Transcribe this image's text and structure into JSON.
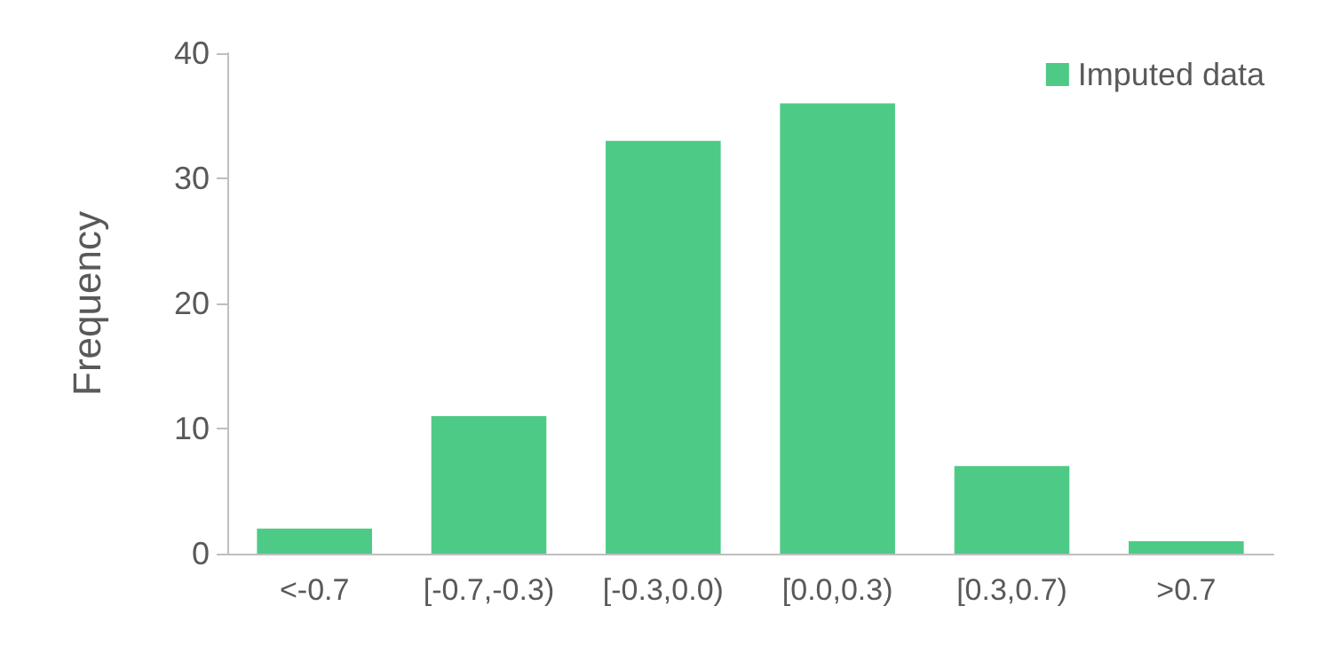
{
  "chart_data": {
    "type": "bar",
    "ylabel": "Frequency",
    "categories": [
      "<-0.7",
      "[-0.7,-0.3)",
      "[-0.3,0.0)",
      "[0.0,0.3)",
      "[0.3,0.7)",
      ">0.7"
    ],
    "series": [
      {
        "name": "Imputed data",
        "color": "#4dca86",
        "values": [
          2,
          11,
          33,
          36,
          7,
          1
        ]
      }
    ],
    "ylim": [
      0,
      40
    ],
    "yticks": [
      0,
      10,
      20,
      30,
      40
    ],
    "grid": false,
    "legend": "top right"
  }
}
